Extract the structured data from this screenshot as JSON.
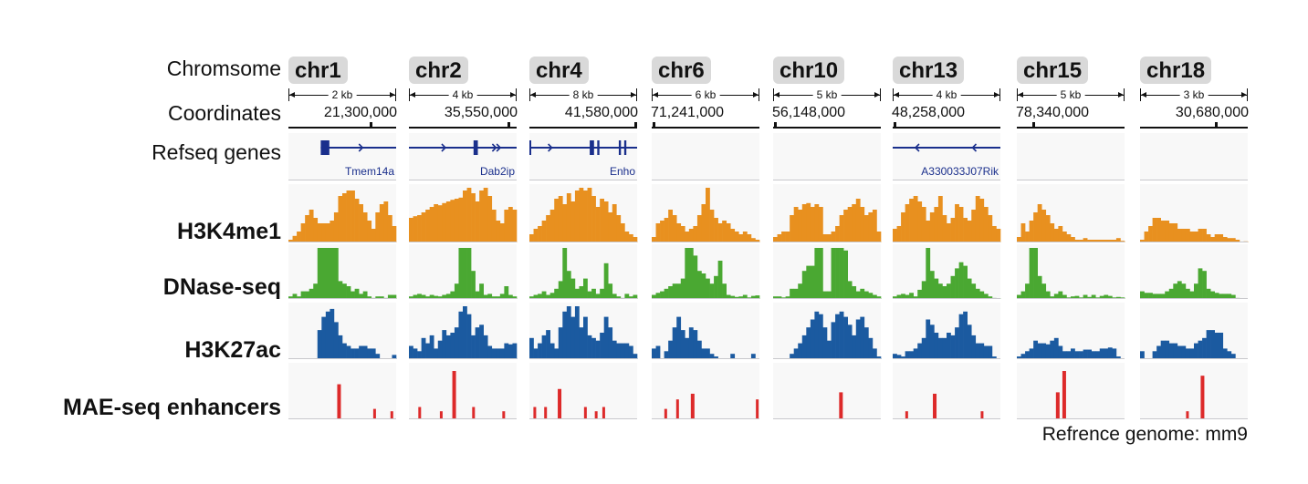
{
  "row_labels": {
    "chromosome": "Chromsome",
    "coordinates": "Coordinates",
    "refseq": "Refseq genes",
    "h3k4me1": "H3K4me1",
    "dnase": "DNase-seq",
    "h3k27ac": "H3K27ac",
    "mae": "MAE-seq enhancers"
  },
  "footer": "Refrence genome: mm9",
  "colors": {
    "h3k4me1": "#e8901f",
    "dnase": "#4aa832",
    "h3k27ac": "#1b5aa0",
    "mae": "#dd2a2a",
    "gene": "#1a2f8c",
    "chr_badge": "#d9d9d9",
    "track_bg": "#f8f8f8"
  },
  "loci": [
    {
      "chr": "chr1",
      "scale": "2 kb",
      "coordinate": "21,300,000",
      "coord_align": "right",
      "tick_frac": 0.76,
      "gene": {
        "name": "Tmem14a",
        "strand": "+",
        "line": [
          0.3,
          1.0
        ],
        "exons": [
          [
            0.3,
            0.38
          ]
        ],
        "arrows": [
          0.68
        ]
      },
      "h3k4me1": [
        0.05,
        0.12,
        0.2,
        0.35,
        0.5,
        0.6,
        0.45,
        0.35,
        0.35,
        0.35,
        0.4,
        0.55,
        0.85,
        0.9,
        0.95,
        0.95,
        0.8,
        0.7,
        0.55,
        0.4,
        0.25,
        0.55,
        0.7,
        0.75,
        0.5,
        0.3
      ],
      "dnase": [
        0.05,
        0.1,
        0.05,
        0.15,
        0.15,
        0.2,
        0.3,
        1.0,
        1.0,
        1.0,
        1.0,
        1.0,
        0.35,
        0.3,
        0.25,
        0.15,
        0.2,
        0.1,
        0.15,
        0.05,
        0.02,
        0.05,
        0.05,
        0.02,
        0.08,
        0.08
      ],
      "h3k27ac": [
        0,
        0,
        0,
        0,
        0,
        0,
        0,
        0.55,
        0.8,
        0.9,
        0.95,
        0.7,
        0.45,
        0.3,
        0.25,
        0.2,
        0.2,
        0.25,
        0.25,
        0.2,
        0.2,
        0.1,
        0,
        0,
        0,
        0.08
      ],
      "mae": [
        [
          0.47,
          0.72
        ],
        [
          0.8,
          0.2
        ],
        [
          0.96,
          0.15
        ]
      ]
    },
    {
      "chr": "chr2",
      "scale": "4 kb",
      "coordinate": "35,550,000",
      "coord_align": "right",
      "tick_frac": 0.92,
      "gene": {
        "name": "Dab2ip",
        "strand": "+",
        "line": [
          0.0,
          1.0
        ],
        "exons": [
          [
            0.6,
            0.64
          ]
        ],
        "arrows": [
          0.33,
          0.8,
          0.84
        ]
      },
      "h3k4me1": [
        0.45,
        0.48,
        0.5,
        0.55,
        0.6,
        0.65,
        0.7,
        0.68,
        0.72,
        0.75,
        0.78,
        0.8,
        0.82,
        0.95,
        1.0,
        0.9,
        0.75,
        0.95,
        1.0,
        0.85,
        0.6,
        0.4,
        0.35,
        0.6,
        0.65,
        0.6
      ],
      "dnase": [
        0.05,
        0.08,
        0.1,
        0.08,
        0.05,
        0.08,
        0.06,
        0.05,
        0.08,
        0.1,
        0.15,
        0.3,
        1.0,
        1.0,
        1.0,
        0.55,
        0.15,
        0.3,
        0.08,
        0.1,
        0.05,
        0.05,
        0.1,
        0.25,
        0.08,
        0.05
      ],
      "h3k27ac": [
        0.25,
        0.2,
        0.15,
        0.4,
        0.3,
        0.45,
        0.2,
        0.35,
        0.55,
        0.45,
        0.5,
        0.6,
        0.9,
        1.0,
        0.85,
        0.45,
        0.6,
        0.65,
        0.45,
        0.25,
        0.2,
        0.2,
        0.2,
        0.3,
        0.28,
        0.3
      ],
      "mae": [
        [
          0.1,
          0.24
        ],
        [
          0.3,
          0.15
        ],
        [
          0.42,
          1.0
        ],
        [
          0.6,
          0.24
        ],
        [
          0.88,
          0.15
        ]
      ]
    },
    {
      "chr": "chr4",
      "scale": "8 kb",
      "coordinate": "41,580,000",
      "coord_align": "right",
      "tick_frac": 0.98,
      "gene": {
        "name": "Enho",
        "strand": "+",
        "line": [
          0.0,
          1.0
        ],
        "exons": [
          [
            0.0,
            0.01
          ],
          [
            0.56,
            0.6
          ],
          [
            0.63,
            0.65
          ],
          [
            0.83,
            0.85
          ],
          [
            0.88,
            0.9
          ]
        ],
        "arrows": [
          0.2
        ]
      },
      "h3k4me1": [
        0.15,
        0.25,
        0.3,
        0.4,
        0.5,
        0.6,
        0.8,
        0.85,
        0.7,
        0.9,
        0.75,
        0.95,
        1.0,
        0.95,
        1.0,
        0.85,
        0.65,
        0.8,
        0.75,
        0.55,
        0.7,
        0.5,
        0.35,
        0.2,
        0.15,
        0.1
      ],
      "dnase": [
        0.05,
        0.08,
        0.1,
        0.15,
        0.08,
        0.12,
        0.2,
        0.35,
        1.0,
        0.55,
        0.4,
        0.2,
        0.25,
        0.4,
        0.15,
        0.2,
        0.1,
        0.2,
        0.7,
        0.3,
        0.1,
        0.05,
        0.02,
        0.1,
        0.05,
        0.08
      ],
      "h3k27ac": [
        0.4,
        0.2,
        0.3,
        0.45,
        0.55,
        0.3,
        0.2,
        0.6,
        0.9,
        1.0,
        0.8,
        1.0,
        0.6,
        0.8,
        0.45,
        0.4,
        0.35,
        0.5,
        0.8,
        0.6,
        0.35,
        0.3,
        0.3,
        0.3,
        0.25,
        0.1
      ],
      "mae": [
        [
          0.05,
          0.24
        ],
        [
          0.15,
          0.24
        ],
        [
          0.28,
          0.62
        ],
        [
          0.52,
          0.24
        ],
        [
          0.62,
          0.15
        ],
        [
          0.69,
          0.24
        ]
      ]
    },
    {
      "chr": "chr6",
      "scale": "6 kb",
      "coordinate": "71,241,000",
      "coord_align": "left",
      "tick_frac": 0.02,
      "gene": null,
      "h3k4me1": [
        0.1,
        0.35,
        0.4,
        0.45,
        0.6,
        0.5,
        0.35,
        0.3,
        0.2,
        0.25,
        0.3,
        0.5,
        0.7,
        1.0,
        0.6,
        0.45,
        0.35,
        0.4,
        0.35,
        0.25,
        0.2,
        0.15,
        0.2,
        0.15,
        0.08,
        0.05
      ],
      "dnase": [
        0.08,
        0.12,
        0.15,
        0.2,
        0.25,
        0.3,
        0.3,
        0.4,
        1.0,
        1.0,
        0.85,
        0.55,
        0.5,
        0.4,
        0.3,
        0.45,
        0.75,
        0.3,
        0.08,
        0.06,
        0.04,
        0.05,
        0.08,
        0.03,
        0.06,
        0.07
      ],
      "h3k27ac": [
        0.2,
        0.25,
        0,
        0.15,
        0.35,
        0.6,
        0.8,
        0.55,
        0.4,
        0.6,
        0.55,
        0.35,
        0.2,
        0.2,
        0.1,
        0.05,
        0,
        0,
        0,
        0.1,
        0,
        0,
        0,
        0,
        0.1,
        0
      ],
      "mae": [
        [
          0.13,
          0.2
        ],
        [
          0.24,
          0.4
        ],
        [
          0.38,
          0.52
        ],
        [
          0.98,
          0.4
        ]
      ]
    },
    {
      "chr": "chr10",
      "scale": "5 kb",
      "coordinate": "56,148,000",
      "coord_align": "left",
      "tick_frac": 0.02,
      "gene": null,
      "h3k4me1": [
        0.1,
        0.15,
        0.2,
        0.2,
        0.5,
        0.65,
        0.6,
        0.7,
        0.72,
        0.65,
        0.7,
        0.65,
        0.15,
        0.15,
        0.2,
        0.3,
        0.5,
        0.6,
        0.65,
        0.7,
        0.8,
        0.65,
        0.5,
        0.55,
        0.6,
        0.2
      ],
      "dnase": [
        0.05,
        0.05,
        0.03,
        0.05,
        0.2,
        0.2,
        0.3,
        0.55,
        0.65,
        0.65,
        1.0,
        1.0,
        0.15,
        0.15,
        1.0,
        1.0,
        1.0,
        0.95,
        0.35,
        0.25,
        0.15,
        0.2,
        0.15,
        0.12,
        0.08,
        0.05
      ],
      "h3k27ac": [
        0,
        0,
        0,
        0,
        0.1,
        0.2,
        0.3,
        0.45,
        0.6,
        0.75,
        0.9,
        0.85,
        0.6,
        0.35,
        0.7,
        0.85,
        0.9,
        0.8,
        0.65,
        0.45,
        0.75,
        0.8,
        0.6,
        0.4,
        0.2,
        0.05
      ],
      "mae": [
        [
          0.63,
          0.55
        ]
      ]
    },
    {
      "chr": "chr13",
      "scale": "4 kb",
      "coordinate": "48,258,000",
      "coord_align": "left",
      "tick_frac": 0.02,
      "gene": {
        "name": "A330033J07Rik",
        "strand": "-",
        "line": [
          0.0,
          1.0
        ],
        "exons": [],
        "arrows": [
          0.22,
          0.75
        ]
      },
      "h3k4me1": [
        0.25,
        0.3,
        0.55,
        0.7,
        0.8,
        0.85,
        0.75,
        0.65,
        0.4,
        0.55,
        0.65,
        0.85,
        0.5,
        0.35,
        0.45,
        0.7,
        0.65,
        0.45,
        0.4,
        0.6,
        0.85,
        0.8,
        0.65,
        0.5,
        0.3,
        0.25
      ],
      "dnase": [
        0.05,
        0.08,
        0.1,
        0.08,
        0.12,
        0.05,
        0.18,
        0.35,
        1.0,
        0.55,
        0.4,
        0.3,
        0.25,
        0.3,
        0.45,
        0.6,
        0.72,
        0.65,
        0.4,
        0.3,
        0.2,
        0.15,
        0.1,
        0.05,
        0.02,
        0.01
      ],
      "h3k27ac": [
        0.1,
        0.08,
        0.05,
        0.15,
        0.15,
        0.2,
        0.3,
        0.4,
        0.75,
        0.65,
        0.5,
        0.4,
        0.4,
        0.5,
        0.45,
        0.6,
        0.85,
        0.9,
        0.65,
        0.45,
        0.3,
        0.3,
        0.25,
        0.25,
        0.05,
        0
      ],
      "mae": [
        [
          0.13,
          0.15
        ],
        [
          0.39,
          0.52
        ],
        [
          0.83,
          0.15
        ]
      ]
    },
    {
      "chr": "chr15",
      "scale": "5 kb",
      "coordinate": "78,340,000",
      "coord_align": "left",
      "tick_frac": 0.15,
      "gene": null,
      "h3k4me1": [
        0.1,
        0.35,
        0.2,
        0.4,
        0.55,
        0.7,
        0.6,
        0.5,
        0.35,
        0.25,
        0.3,
        0.2,
        0.15,
        0.1,
        0.05,
        0.05,
        0.08,
        0.05,
        0.05,
        0.05,
        0.05,
        0.05,
        0.05,
        0.05,
        0.08,
        0.03
      ],
      "dnase": [
        0.08,
        0.15,
        0.3,
        1.0,
        1.0,
        0.45,
        0.3,
        0.15,
        0.05,
        0.1,
        0.15,
        0.08,
        0.03,
        0.05,
        0.06,
        0.03,
        0.08,
        0.04,
        0.08,
        0.03,
        0.06,
        0.08,
        0.06,
        0.03,
        0.04,
        0.03
      ],
      "h3k27ac": [
        0.05,
        0.1,
        0.15,
        0.2,
        0.35,
        0.3,
        0.3,
        0.28,
        0.35,
        0.4,
        0.25,
        0.15,
        0.15,
        0.2,
        0.15,
        0.15,
        0.18,
        0.18,
        0.15,
        0.15,
        0.2,
        0.2,
        0.22,
        0.2,
        0.05,
        0
      ],
      "mae": [
        [
          0.38,
          0.55
        ],
        [
          0.44,
          1.0
        ]
      ]
    },
    {
      "chr": "chr18",
      "scale": "3 kb",
      "coordinate": "30,680,000",
      "coord_align": "right",
      "tick_frac": 0.7,
      "gene": null,
      "h3k4me1": [
        0.05,
        0.2,
        0.3,
        0.45,
        0.45,
        0.4,
        0.4,
        0.35,
        0.35,
        0.25,
        0.25,
        0.25,
        0.2,
        0.2,
        0.25,
        0.25,
        0.15,
        0.1,
        0.15,
        0.15,
        0.1,
        0.08,
        0.08,
        0.05,
        0.01,
        0.02
      ],
      "dnase": [
        0.15,
        0.12,
        0.12,
        0.1,
        0.1,
        0.1,
        0.15,
        0.2,
        0.3,
        0.35,
        0.3,
        0.2,
        0.15,
        0.3,
        0.6,
        0.55,
        0.2,
        0.15,
        0.12,
        0.1,
        0.1,
        0.1,
        0.08,
        0.02,
        0,
        0
      ],
      "h3k27ac": [
        0.15,
        0,
        0,
        0.15,
        0.25,
        0.35,
        0.35,
        0.3,
        0.3,
        0.25,
        0.25,
        0.2,
        0.2,
        0.3,
        0.35,
        0.4,
        0.55,
        0.55,
        0.5,
        0.5,
        0.2,
        0.15,
        0.1,
        0,
        0,
        0
      ],
      "mae": [
        [
          0.44,
          0.15
        ],
        [
          0.58,
          0.9
        ]
      ]
    }
  ]
}
